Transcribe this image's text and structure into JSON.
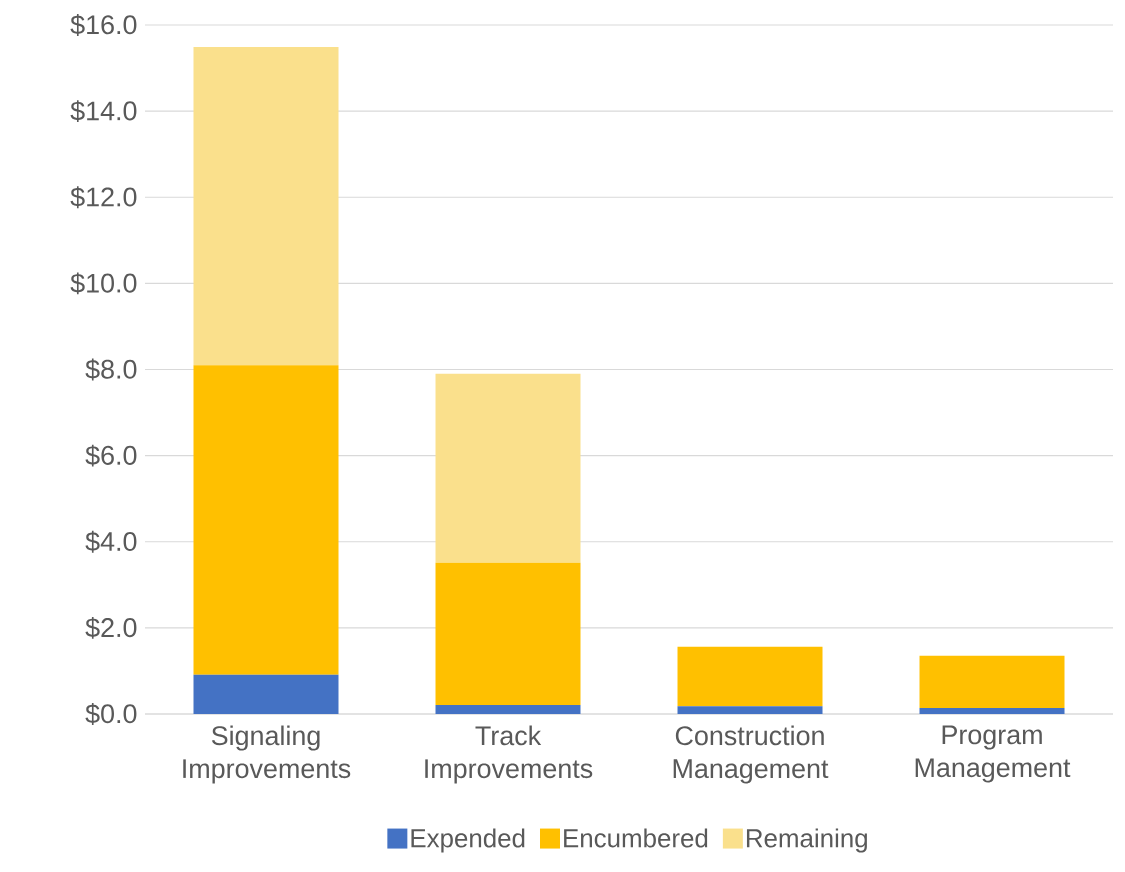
{
  "chart_data": {
    "type": "bar",
    "stacked": true,
    "categories": [
      "Signaling Improvements",
      "Track Improvements",
      "Construction Management",
      "Program Management"
    ],
    "series": [
      {
        "name": "Expended",
        "color": "#4472c4",
        "values": [
          0.91,
          0.21,
          0.18,
          0.14
        ]
      },
      {
        "name": "Encumbered",
        "color": "#ffc000",
        "values": [
          7.19,
          3.3,
          1.38,
          1.21
        ]
      },
      {
        "name": "Remaining",
        "color": "#fae08c",
        "values": [
          7.39,
          4.39,
          null,
          null
        ]
      }
    ],
    "ylim": [
      0,
      16
    ],
    "yticks": [
      {
        "value": 0,
        "label": "$0.0"
      },
      {
        "value": 2,
        "label": "$2.0"
      },
      {
        "value": 4,
        "label": "$4.0"
      },
      {
        "value": 6,
        "label": "$6.0"
      },
      {
        "value": 8,
        "label": "$8.0"
      },
      {
        "value": 10,
        "label": "$10.0"
      },
      {
        "value": 12,
        "label": "$12.0"
      },
      {
        "value": 14,
        "label": "$14.0"
      },
      {
        "value": 16,
        "label": "$16.0"
      }
    ],
    "grid": "y",
    "legend": "bottom"
  }
}
